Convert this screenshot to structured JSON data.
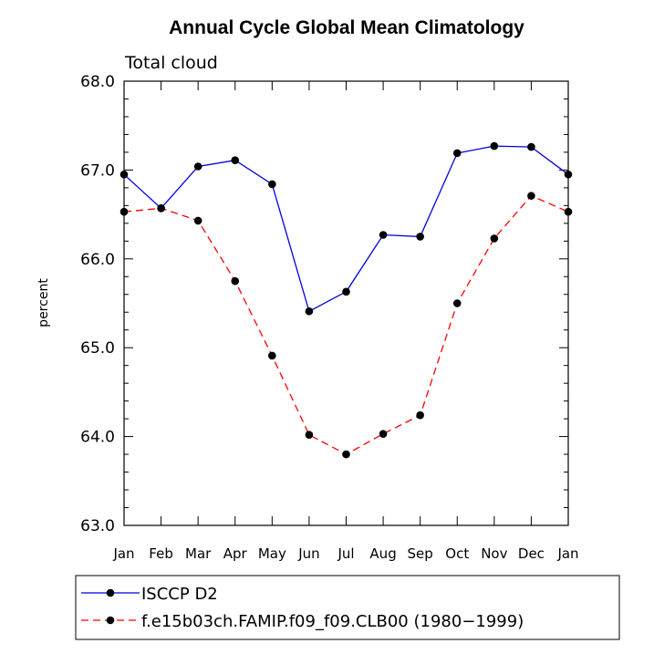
{
  "chart_data": {
    "type": "line",
    "title": "Annual Cycle Global Mean Climatology",
    "subtitle": "Total cloud",
    "xlabel": "",
    "ylabel": "percent",
    "ylim": [
      63.0,
      68.0
    ],
    "yticks": [
      "63.0",
      "64.0",
      "65.0",
      "66.0",
      "67.0",
      "68.0"
    ],
    "categories": [
      "Jan",
      "Feb",
      "Mar",
      "Apr",
      "May",
      "Jun",
      "Jul",
      "Aug",
      "Sep",
      "Oct",
      "Nov",
      "Dec",
      "Jan"
    ],
    "series": [
      {
        "name": "ISCCP D2",
        "color": "#0000dd",
        "dash": "solid",
        "values": [
          66.95,
          66.57,
          67.04,
          67.11,
          66.84,
          65.41,
          65.63,
          66.27,
          66.25,
          67.19,
          67.27,
          67.26,
          66.95
        ]
      },
      {
        "name": "f.e15b03ch.FAMIP.f09_f09.CLB00 (1980−1999)",
        "color": "#ff0000",
        "dash": "dashed",
        "values": [
          66.53,
          66.57,
          66.43,
          65.75,
          64.91,
          64.02,
          63.8,
          64.03,
          64.24,
          65.5,
          66.23,
          66.71,
          66.53
        ]
      }
    ],
    "legend_position": "bottom"
  }
}
